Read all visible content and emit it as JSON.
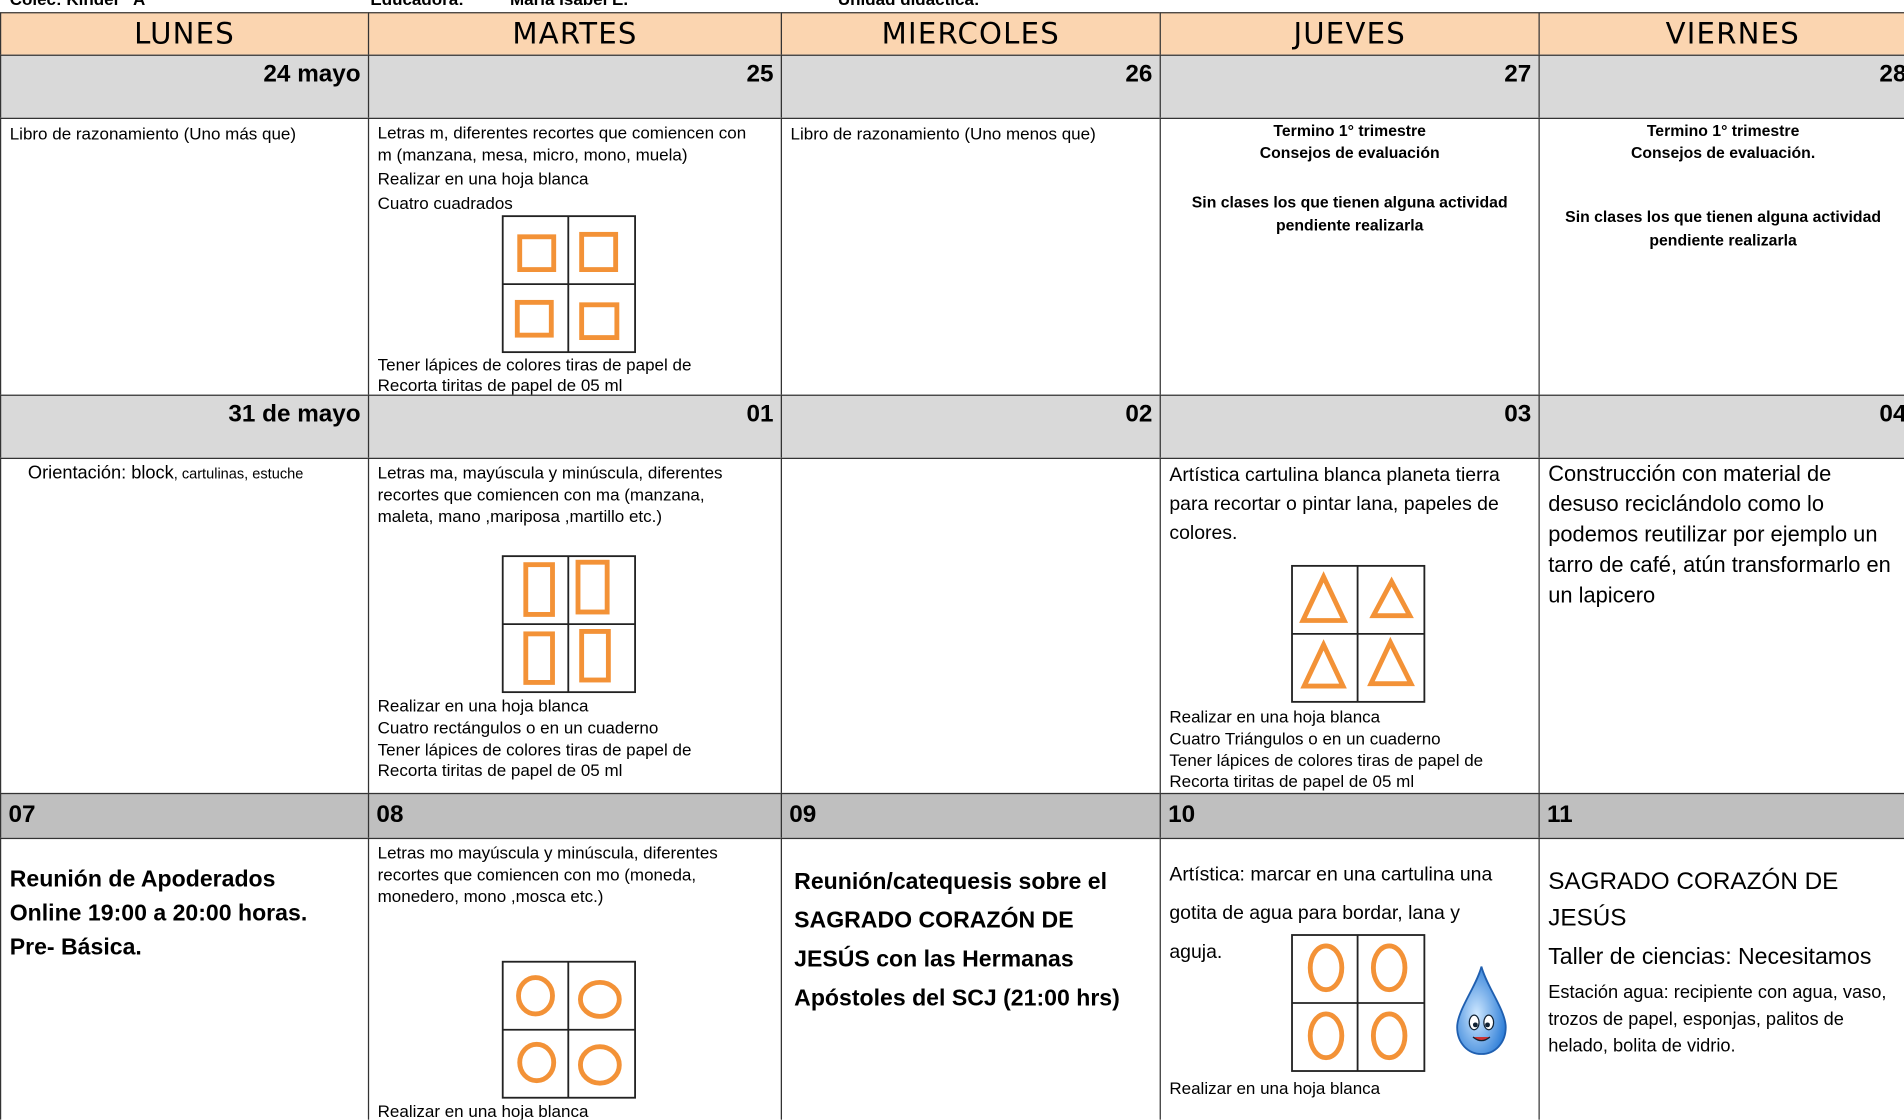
{
  "header": {
    "school": "Colec: Kinder \"A\"",
    "teacher_label": "Educadora:",
    "teacher": "María Isabel E.",
    "unit": "Unidad didáctica:"
  },
  "days": [
    "LUNES",
    "MARTES",
    "MIERCOLES",
    "JUEVES",
    "VIERNES"
  ],
  "weeks": [
    {
      "dates": [
        "24 mayo",
        "25",
        "26",
        "27",
        "28"
      ],
      "cells": [
        [
          "Libro de razonamiento (Uno más que)"
        ],
        [
          "Letras m, diferentes recortes que comiencen con m (manzana, mesa, micro, mono, muela)",
          "Realizar en una hoja blanca",
          "Cuatro cuadrados",
          "Tener lápices de colores tiras de papel de",
          "Recorta tiritas de papel de 05 ml"
        ],
        [
          "Libro de razonamiento (Uno menos que)"
        ],
        [
          "Termino 1° trimestre",
          "Consejos de evaluación",
          "Sin clases los que tienen alguna actividad pendiente realizarla"
        ],
        [
          "Termino 1° trimestre",
          "Consejos de evaluación.",
          "Sin clases los que tienen alguna actividad pendiente realizarla"
        ]
      ]
    },
    {
      "dates": [
        "31 de mayo",
        "01",
        "02",
        "03",
        "04"
      ],
      "cells": [
        [
          "Orientación: block",
          ", cartulinas, estuche"
        ],
        [
          "Letras ma, mayúscula y minúscula, diferentes recortes que comiencen con ma  (manzana, maleta, mano ,mariposa ,martillo  etc.)",
          "Realizar en una hoja blanca",
          "Cuatro rectángulos o en un cuaderno",
          "Tener lápices de colores tiras de papel de",
          "Recorta tiritas de papel de 05 ml"
        ],
        [],
        [
          "Artística cartulina blanca planeta tierra para recortar o pintar lana, papeles de colores.",
          "Realizar en una hoja blanca",
          "Cuatro Triángulos o en un cuaderno",
          "Tener lápices de colores tiras de papel de",
          "Recorta tiritas de papel de 05 ml"
        ],
        [
          "Construcción con material de desuso reciclándolo como lo podemos reutilizar por ejemplo un tarro de café, atún transformarlo en un lapicero"
        ]
      ]
    },
    {
      "dates": [
        "07",
        "08",
        "09",
        "10",
        "11"
      ],
      "cells": [
        [
          "Reunión de Apoderados Online  19:00 a 20:00 horas. Pre- Básica."
        ],
        [
          "Letras mo mayúscula y minúscula, diferentes recortes que comiencen con mo  (moneda, monedero, mono ,mosca etc.)",
          "Realizar en una hoja blanca"
        ],
        [
          "Reunión/catequesis sobre el SAGRADO CORAZÓN DE JESÚS con las Hermanas Apóstoles del SCJ (21:00 hrs)"
        ],
        [
          "Artística: marcar en una cartulina una gotita de agua para bordar, lana y aguja.",
          "Realizar en una hoja blanca"
        ],
        [
          "SAGRADO CORAZÓN DE JESÚS",
          "Taller de ciencias: Necesitamos",
          "Estación agua: recipiente con agua, vaso, trozos de papel, esponjas, palitos de helado, bolita de vidrio."
        ]
      ]
    }
  ]
}
